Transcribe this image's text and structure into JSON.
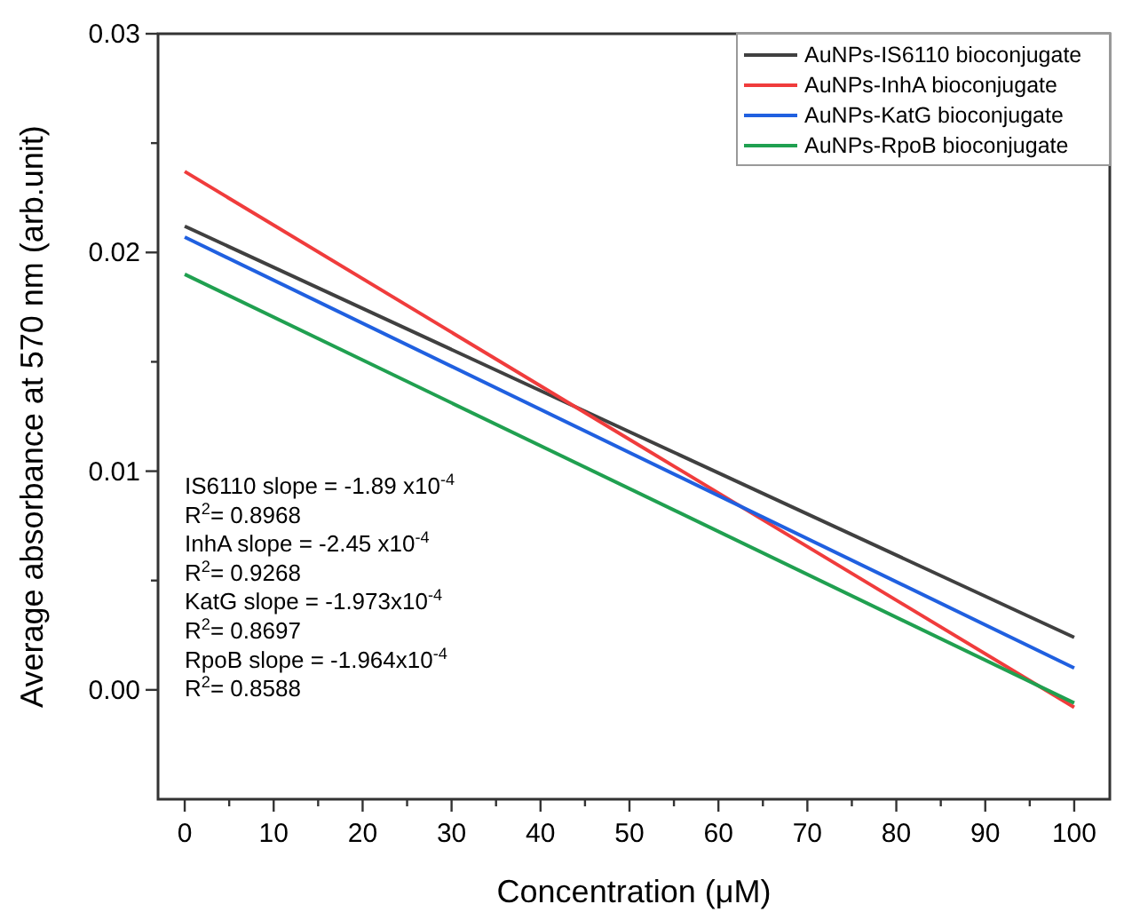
{
  "chart_data": {
    "type": "line",
    "xlabel": "Concentration (μM)",
    "ylabel": "Average absorbance at 570 nm (arb.unit)",
    "x": [
      0,
      100
    ],
    "xlim": [
      -3,
      104
    ],
    "ylim": [
      -0.005,
      0.03
    ],
    "xticks": [
      0,
      {
        "value": 5,
        "label": null
      },
      10,
      {
        "value": 15,
        "label": null
      },
      20,
      {
        "value": 25,
        "label": null
      },
      30,
      {
        "value": 35,
        "label": null
      },
      40,
      {
        "value": 45,
        "label": null
      },
      50,
      {
        "value": 55,
        "label": null
      },
      60,
      {
        "value": 65,
        "label": null
      },
      70,
      {
        "value": 75,
        "label": null
      },
      80,
      {
        "value": 85,
        "label": null
      },
      90,
      {
        "value": 95,
        "label": null
      },
      100
    ],
    "yticks": [
      {
        "value": 0,
        "label": "0.00"
      },
      {
        "value": 0.005,
        "label": null
      },
      {
        "value": 0.01,
        "label": "0.01"
      },
      {
        "value": 0.015,
        "label": null
      },
      {
        "value": 0.02,
        "label": "0.02"
      },
      {
        "value": 0.025,
        "label": null
      },
      {
        "value": 0.03,
        "label": "0.03"
      }
    ],
    "series": [
      {
        "name": "AuNPs-IS6110 bioconjugate",
        "color": "#404040",
        "values": [
          0.0212,
          0.0024
        ]
      },
      {
        "name": "AuNPs-InhA bioconjugate",
        "color": "#f03c3c",
        "values": [
          0.0237,
          -0.0008
        ]
      },
      {
        "name": "AuNPs-KatG bioconjugate",
        "color": "#2060e0",
        "values": [
          0.0207,
          0.001
        ]
      },
      {
        "name": "AuNPs-RpoB bioconjugate",
        "color": "#20a050",
        "values": [
          0.019,
          -0.0006
        ]
      }
    ],
    "annotations": [
      "IS6110 slope = -1.89 x10$^{-4}$",
      "R$^{2}$= 0.8968",
      "InhA slope = -2.45 x10$^{-4}$",
      "R$^{2}$= 0.9268",
      "KatG slope = -1.973x10$^{-4}$",
      "R$^{2}$= 0.8697",
      "RpoB slope = -1.964x10$^{-4}$",
      "R$^{2}$= 0.8588"
    ],
    "legend": "top right",
    "grid": false,
    "marker": "none",
    "line_style": "solid"
  }
}
